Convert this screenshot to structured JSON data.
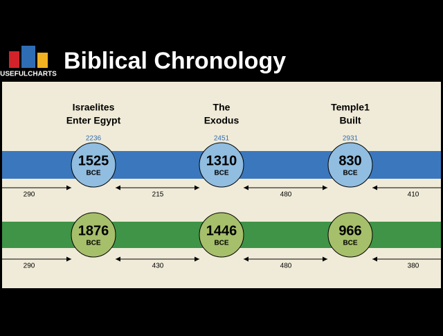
{
  "header": {
    "logo": "USEFULCHARTS",
    "title": "Biblical Chronology"
  },
  "events": [
    {
      "label": [
        "Israelites",
        "Enter Egypt"
      ],
      "top_number": 2236
    },
    {
      "label": [
        "The",
        "Exodus"
      ],
      "top_number": 2451
    },
    {
      "label": [
        "Temple1",
        "Built"
      ],
      "top_number": 2931
    }
  ],
  "rows": [
    {
      "dates": [
        {
          "year": 1525,
          "era": "BCE"
        },
        {
          "year": 1310,
          "era": "BCE"
        },
        {
          "year": 830,
          "era": "BCE"
        }
      ],
      "intervals": [
        290,
        215,
        480,
        410
      ]
    },
    {
      "dates": [
        {
          "year": 1876,
          "era": "BCE"
        },
        {
          "year": 1446,
          "era": "BCE"
        },
        {
          "year": 966,
          "era": "BCE"
        }
      ],
      "intervals": [
        290,
        430,
        480,
        380
      ]
    }
  ]
}
